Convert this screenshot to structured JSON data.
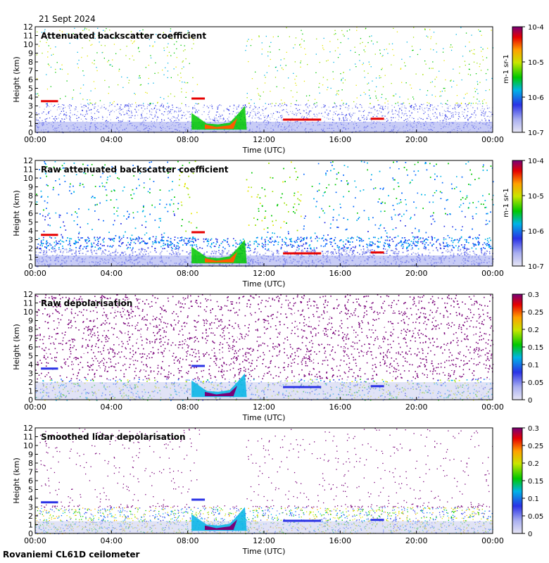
{
  "date": "21 Sept 2024",
  "footer": "Rovaniemi CL61D ceilometer",
  "chart_data": [
    {
      "type": "heatmap",
      "title": "Attenuated backscatter coefficient",
      "xlabel": "Time (UTC)",
      "ylabel": "Height (km)",
      "xticks": [
        "00:00",
        "04:00",
        "08:00",
        "12:00",
        "16:00",
        "20:00",
        "00:00"
      ],
      "yticks": [
        "0",
        "1",
        "2",
        "3",
        "4",
        "5",
        "6",
        "7",
        "8",
        "9",
        "10",
        "11",
        "12"
      ],
      "ylim": [
        0,
        12
      ],
      "xlim_hours": [
        0,
        24
      ],
      "colorbar": {
        "scale": "log",
        "ticks": [
          "10-7",
          "10-6",
          "10-5",
          "10-4"
        ],
        "label": "m-1 sr-1"
      },
      "features": [
        {
          "kind": "noise_base",
          "h0": 0,
          "h1": 3.3,
          "dens": 0.9
        },
        {
          "kind": "sparse_green",
          "h0": 3.3,
          "h1": 12,
          "dens": 0.04
        },
        {
          "kind": "cloud",
          "t0": 8.2,
          "t1": 11.1,
          "h0": 0.2,
          "h1": 3.0
        },
        {
          "kind": "layer",
          "t0": 13.0,
          "t1": 15.0,
          "h": 1.4
        },
        {
          "kind": "layer",
          "t0": 0.3,
          "t1": 1.2,
          "h": 3.5
        },
        {
          "kind": "layer",
          "t0": 17.6,
          "t1": 18.3,
          "h": 1.5
        }
      ]
    },
    {
      "type": "heatmap",
      "title": "Raw attenuated backscatter coefficient",
      "xlabel": "Time (UTC)",
      "ylabel": "Height (km)",
      "xticks": [
        "00:00",
        "04:00",
        "08:00",
        "12:00",
        "16:00",
        "20:00",
        "00:00"
      ],
      "yticks": [
        "0",
        "1",
        "2",
        "3",
        "4",
        "5",
        "6",
        "7",
        "8",
        "9",
        "10",
        "11",
        "12"
      ],
      "ylim": [
        0,
        12
      ],
      "xlim_hours": [
        0,
        24
      ],
      "colorbar": {
        "scale": "log",
        "ticks": [
          "10-7",
          "10-6",
          "10-5",
          "10-4"
        ],
        "label": "m-1 sr-1"
      }
    },
    {
      "type": "heatmap",
      "title": "Raw depolarisation",
      "xlabel": "Time (UTC)",
      "ylabel": "Height (km)",
      "xticks": [
        "00:00",
        "04:00",
        "08:00",
        "12:00",
        "16:00",
        "20:00",
        "00:00"
      ],
      "yticks": [
        "0",
        "1",
        "2",
        "3",
        "4",
        "5",
        "6",
        "7",
        "8",
        "9",
        "10",
        "11",
        "12"
      ],
      "ylim": [
        0,
        12
      ],
      "xlim_hours": [
        0,
        24
      ],
      "colorbar": {
        "scale": "linear",
        "ticks": [
          "0",
          "0.05",
          "0.1",
          "0.15",
          "0.2",
          "0.25",
          "0.3"
        ],
        "range": [
          0,
          0.3
        ]
      }
    },
    {
      "type": "heatmap",
      "title": "Smoothed lidar depolarisation",
      "xlabel": "Time (UTC)",
      "ylabel": "Height (km)",
      "xticks": [
        "00:00",
        "04:00",
        "08:00",
        "12:00",
        "16:00",
        "20:00",
        "00:00"
      ],
      "yticks": [
        "0",
        "1",
        "2",
        "3",
        "4",
        "5",
        "6",
        "7",
        "8",
        "9",
        "10",
        "11",
        "12"
      ],
      "ylim": [
        0,
        12
      ],
      "xlim_hours": [
        0,
        24
      ],
      "colorbar": {
        "scale": "linear",
        "ticks": [
          "0",
          "0.05",
          "0.1",
          "0.15",
          "0.2",
          "0.25",
          "0.3"
        ],
        "range": [
          0,
          0.3
        ]
      }
    }
  ]
}
